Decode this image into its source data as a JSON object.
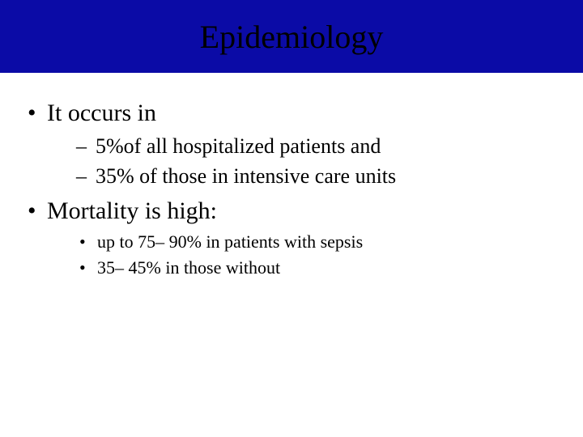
{
  "slide": {
    "title": "Epidemiology",
    "title_bar_color": "#0b0ba6",
    "title_text_color": "#000000",
    "background_color": "#ffffff",
    "body_text_color": "#000000",
    "font_family": "Times New Roman",
    "title_fontsize": 40,
    "level1_fontsize": 30,
    "level2_fontsize": 26,
    "level3_fontsize": 22,
    "bullets": {
      "level1": [
        {
          "text": "It occurs in",
          "children": [
            {
              "text": "5%of all hospitalized patients and"
            },
            {
              "text": "35% of those in intensive care units"
            }
          ]
        },
        {
          "text": "Mortality is high:",
          "children_level3": [
            {
              "text": "up to 75– 90% in patients with sepsis"
            },
            {
              "text": "35– 45% in those without"
            }
          ]
        }
      ]
    }
  }
}
